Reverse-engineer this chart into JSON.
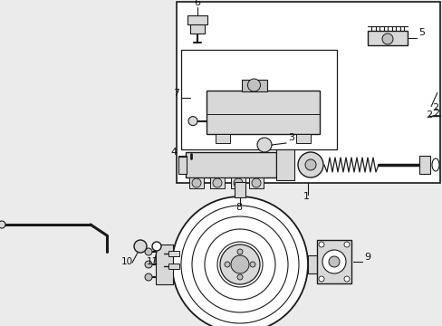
{
  "bg_color": "#ebebeb",
  "line_color": "#1a1a1a",
  "white": "#ffffff",
  "light_gray": "#d8d8d8",
  "mid_gray": "#c0c0c0"
}
